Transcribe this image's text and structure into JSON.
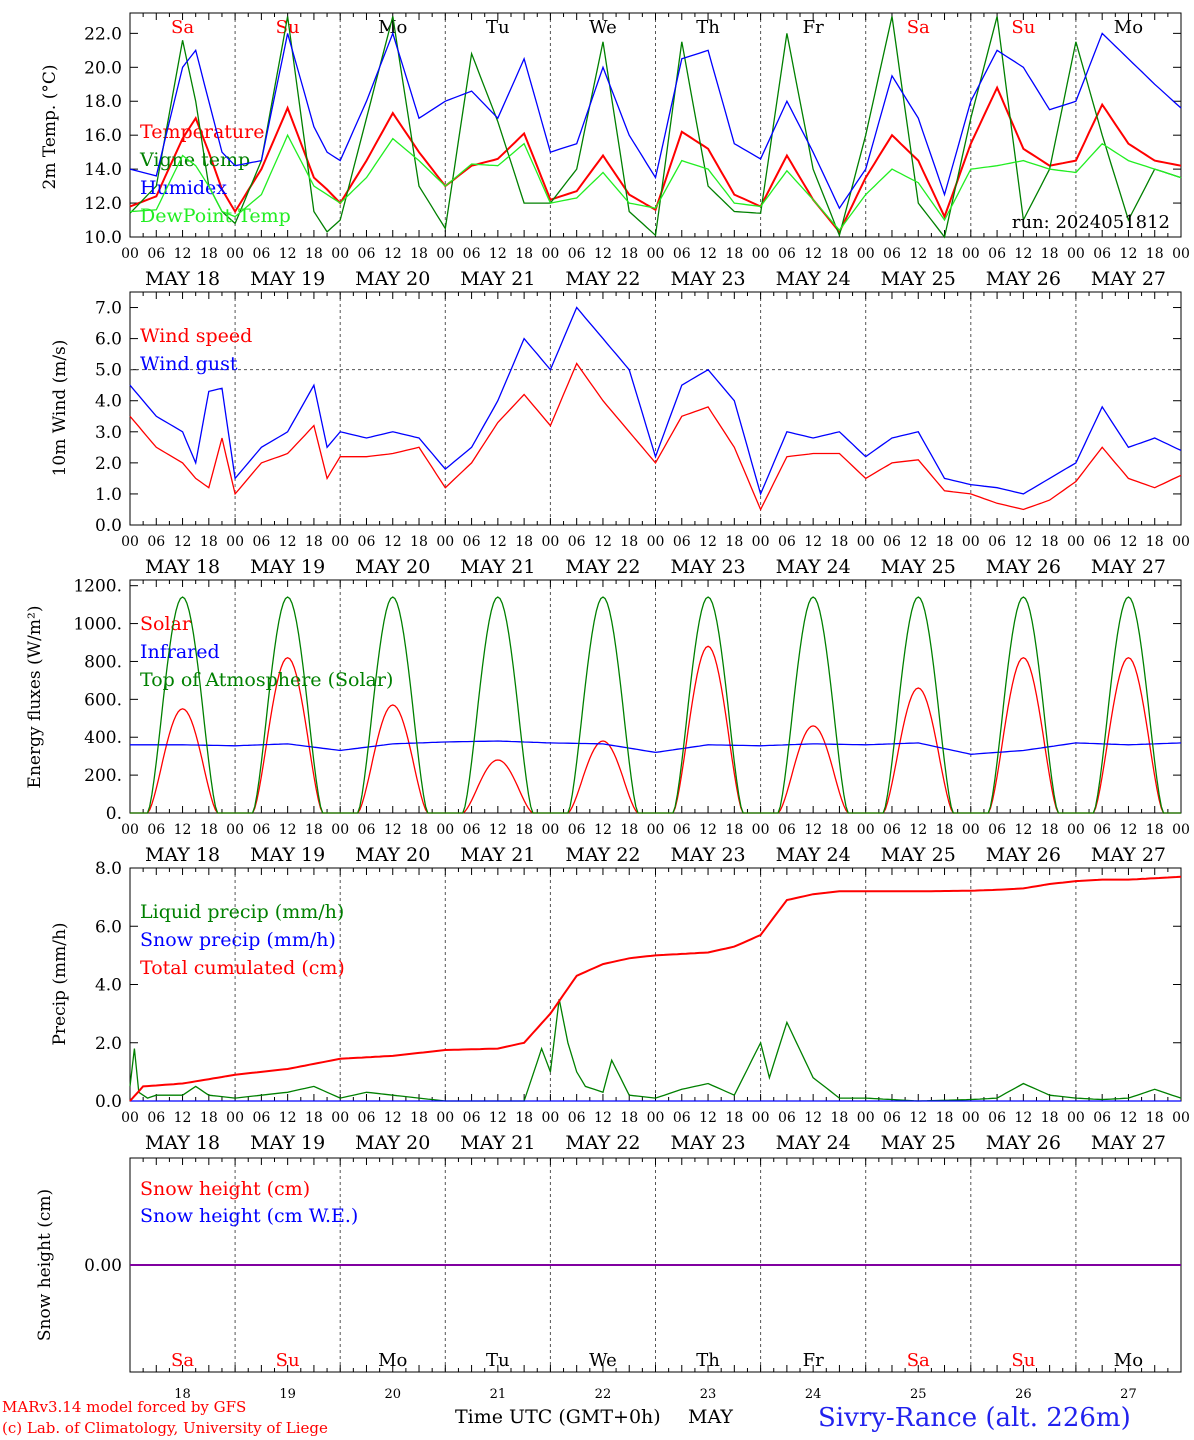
{
  "run_label": "run: 2024051812",
  "footer": {
    "model_line1": "MARv3.14 model forced by GFS",
    "model_line2": "(c) Lab. of Climatology, University of Liege",
    "time_label": "Time UTC (GMT+0h)",
    "month_label": "MAY",
    "station_label": "Sivry-Rance (alt. 226m)"
  },
  "days": [
    {
      "abbr": "Sa",
      "date": "MAY 18",
      "num": "18",
      "weekend": true
    },
    {
      "abbr": "Su",
      "date": "MAY 19",
      "num": "19",
      "weekend": true
    },
    {
      "abbr": "Mo",
      "date": "MAY 20",
      "num": "20",
      "weekend": false
    },
    {
      "abbr": "Tu",
      "date": "MAY 21",
      "num": "21",
      "weekend": false
    },
    {
      "abbr": "We",
      "date": "MAY 22",
      "num": "22",
      "weekend": false
    },
    {
      "abbr": "Th",
      "date": "MAY 23",
      "num": "23",
      "weekend": false
    },
    {
      "abbr": "Fr",
      "date": "MAY 24",
      "num": "24",
      "weekend": false
    },
    {
      "abbr": "Sa",
      "date": "MAY 25",
      "num": "25",
      "weekend": true
    },
    {
      "abbr": "Su",
      "date": "MAY 26",
      "num": "26",
      "weekend": true
    },
    {
      "abbr": "Mo",
      "date": "MAY 27",
      "num": "27",
      "weekend": false
    }
  ],
  "hour_ticks": [
    "00",
    "06",
    "12",
    "18"
  ],
  "hour_end_tick": "00",
  "colors": {
    "red": "#ff0000",
    "blue": "#0000ff",
    "green": "#008000",
    "lightgreen": "#22ee22",
    "purple": "#8000a0",
    "grey": "#555555"
  },
  "chart_data": [
    {
      "id": "temperature",
      "type": "line",
      "ylabel": "2m Temp. (°C)",
      "ylim": [
        10,
        23.2
      ],
      "yticks": [
        "10.0",
        "12.0",
        "14.0",
        "16.0",
        "18.0",
        "20.0",
        "22.0"
      ],
      "x_unit": "hours since MAY 18 00 UTC",
      "series": [
        {
          "name": "Temperature",
          "color": "red",
          "x": [
            0,
            6,
            12,
            15,
            18,
            21,
            24,
            30,
            36,
            42,
            45,
            48,
            54,
            60,
            66,
            72,
            78,
            84,
            90,
            96,
            102,
            108,
            114,
            120,
            126,
            132,
            138,
            144,
            150,
            156,
            162,
            168,
            174,
            180,
            186,
            192,
            198,
            204,
            210,
            216,
            222,
            228,
            234,
            240
          ],
          "values": [
            11.8,
            12.4,
            15.8,
            17,
            15,
            12.8,
            11.5,
            14,
            17.6,
            13.5,
            12.8,
            12,
            14.5,
            17.3,
            15,
            13,
            14.2,
            14.6,
            16.1,
            12.2,
            12.7,
            14.8,
            12.5,
            11.6,
            16.2,
            15.2,
            12.5,
            11.8,
            14.8,
            12.2,
            10.3,
            13.5,
            16,
            14.5,
            11.2,
            15.5,
            18.8,
            15.2,
            14.2,
            14.5,
            17.8,
            15.5,
            14.5,
            14.2
          ]
        },
        {
          "name": "Vigne temp",
          "color": "green",
          "x": [
            0,
            6,
            12,
            15,
            18,
            21,
            24,
            30,
            36,
            42,
            45,
            48,
            54,
            60,
            66,
            72,
            78,
            84,
            90,
            96,
            102,
            108,
            114,
            120,
            126,
            132,
            138,
            144,
            150,
            156,
            162,
            168,
            174,
            180,
            186,
            192,
            198,
            204,
            210,
            216,
            222,
            228,
            234,
            240
          ],
          "values": [
            11.4,
            13,
            21.6,
            18,
            13,
            11.5,
            10.8,
            14.5,
            23,
            11.5,
            10.3,
            11,
            17,
            23,
            13,
            10.5,
            20.8,
            16.8,
            12,
            12,
            14,
            21.5,
            11.5,
            10.1,
            21.5,
            13,
            11.5,
            11.4,
            22,
            14,
            10.1,
            16,
            23,
            12,
            10,
            17,
            23,
            11,
            14,
            21.5,
            16,
            11,
            14,
            13.5
          ]
        },
        {
          "name": "Humidex",
          "color": "blue",
          "x": [
            0,
            6,
            12,
            15,
            18,
            21,
            24,
            30,
            36,
            42,
            45,
            48,
            54,
            60,
            66,
            72,
            78,
            84,
            90,
            96,
            102,
            108,
            114,
            120,
            126,
            132,
            138,
            144,
            150,
            156,
            162,
            168,
            174,
            180,
            186,
            192,
            198,
            204,
            210,
            216,
            222,
            228,
            234,
            240
          ],
          "values": [
            14,
            13.6,
            20,
            21,
            18,
            15,
            14.2,
            14.5,
            22,
            16.5,
            15,
            14.5,
            18,
            22,
            17,
            18,
            18.6,
            17,
            20.5,
            15,
            15.5,
            20,
            16,
            13.5,
            20.5,
            21,
            15.5,
            14.6,
            18,
            15,
            11.7,
            14,
            19.5,
            17,
            12.5,
            18,
            21,
            20,
            17.5,
            18,
            22,
            20.5,
            19,
            17.6
          ]
        },
        {
          "name": "DewPoint Temp",
          "color": "lightgreen",
          "x": [
            0,
            6,
            12,
            15,
            18,
            21,
            24,
            30,
            36,
            42,
            45,
            48,
            54,
            60,
            66,
            72,
            78,
            84,
            90,
            96,
            102,
            108,
            114,
            120,
            126,
            132,
            138,
            144,
            150,
            156,
            162,
            168,
            174,
            180,
            186,
            192,
            198,
            204,
            210,
            216,
            222,
            228,
            234,
            240
          ],
          "values": [
            11.5,
            11.6,
            14.8,
            14.2,
            13,
            11.5,
            11.2,
            12.5,
            16,
            13,
            12.5,
            12,
            13.5,
            15.8,
            14.5,
            13,
            14.3,
            14.2,
            15.5,
            12,
            12.3,
            13.8,
            12,
            11.7,
            14.5,
            14,
            12,
            11.8,
            13.9,
            12.2,
            10.4,
            12.5,
            14,
            13.2,
            11,
            14,
            14.2,
            14.5,
            14,
            13.8,
            15.5,
            14.5,
            14,
            13.5
          ]
        }
      ]
    },
    {
      "id": "wind",
      "type": "line",
      "ylabel": "10m Wind (m/s)",
      "ylim": [
        0,
        7.5
      ],
      "yticks": [
        "0.0",
        "1.0",
        "2.0",
        "3.0",
        "4.0",
        "5.0",
        "6.0",
        "7.0"
      ],
      "reference_line": 5,
      "series": [
        {
          "name": "Wind speed",
          "color": "red",
          "x": [
            0,
            6,
            12,
            15,
            18,
            21,
            24,
            30,
            36,
            42,
            45,
            48,
            54,
            60,
            66,
            72,
            78,
            84,
            90,
            96,
            102,
            108,
            114,
            120,
            126,
            132,
            138,
            144,
            150,
            156,
            162,
            168,
            174,
            180,
            186,
            192,
            198,
            204,
            210,
            216,
            222,
            228,
            234,
            240
          ],
          "values": [
            3.5,
            2.5,
            2.0,
            1.5,
            1.2,
            2.8,
            1.0,
            2.0,
            2.3,
            3.2,
            1.5,
            2.2,
            2.2,
            2.3,
            2.5,
            1.2,
            2.0,
            3.3,
            4.2,
            3.2,
            5.2,
            4.0,
            3.0,
            2.0,
            3.5,
            3.8,
            2.5,
            0.5,
            2.2,
            2.3,
            2.3,
            1.5,
            2.0,
            2.1,
            1.1,
            1.0,
            0.7,
            0.5,
            0.8,
            1.4,
            2.5,
            1.5,
            1.2,
            1.6
          ]
        },
        {
          "name": "Wind gust",
          "color": "blue",
          "x": [
            0,
            6,
            12,
            15,
            18,
            21,
            24,
            30,
            36,
            42,
            45,
            48,
            54,
            60,
            66,
            72,
            78,
            84,
            90,
            96,
            102,
            108,
            114,
            120,
            126,
            132,
            138,
            144,
            150,
            156,
            162,
            168,
            174,
            180,
            186,
            192,
            198,
            204,
            210,
            216,
            222,
            228,
            234,
            240
          ],
          "values": [
            4.5,
            3.5,
            3.0,
            2.0,
            4.3,
            4.4,
            1.5,
            2.5,
            3.0,
            4.5,
            2.5,
            3.0,
            2.8,
            3.0,
            2.8,
            1.8,
            2.5,
            4.0,
            6.0,
            5.0,
            7.0,
            6.0,
            5.0,
            2.2,
            4.5,
            5.0,
            4.0,
            1.0,
            3.0,
            2.8,
            3.0,
            2.2,
            2.8,
            3.0,
            1.5,
            1.3,
            1.2,
            1.0,
            1.5,
            2.0,
            3.8,
            2.5,
            2.8,
            2.4
          ]
        }
      ]
    },
    {
      "id": "energy",
      "type": "line",
      "ylabel": "Energy fluxes (W/m²)",
      "ylim": [
        0,
        1230
      ],
      "yticks": [
        "0.",
        "200.",
        "400.",
        "600.",
        "800.",
        "1000.",
        "1200."
      ],
      "series": [
        {
          "name": "Solar",
          "color": "red",
          "day_peaks": [
            550,
            820,
            570,
            280,
            380,
            880,
            460,
            660,
            820,
            820
          ]
        },
        {
          "name": "Infrared",
          "color": "blue",
          "x": [
            0,
            12,
            24,
            36,
            48,
            60,
            72,
            84,
            96,
            108,
            120,
            132,
            144,
            156,
            168,
            180,
            192,
            204,
            216,
            228,
            240
          ],
          "values": [
            360,
            360,
            355,
            365,
            330,
            365,
            375,
            380,
            370,
            365,
            320,
            360,
            355,
            365,
            360,
            370,
            310,
            330,
            370,
            360,
            370
          ]
        },
        {
          "name": "Top of Atmosphere (Solar)",
          "color": "green",
          "day_peak": 1140
        }
      ]
    },
    {
      "id": "precip",
      "type": "line",
      "ylabel": "Precip (mm/h)",
      "ylim": [
        0,
        8.0
      ],
      "yticks": [
        "0.0",
        "2.0",
        "4.0",
        "6.0",
        "8.0"
      ],
      "series": [
        {
          "name": "Liquid precip (mm/h)",
          "color": "green",
          "x": [
            0,
            1,
            2,
            4,
            6,
            12,
            15,
            18,
            24,
            30,
            36,
            42,
            48,
            54,
            60,
            66,
            72,
            84,
            90,
            94,
            96,
            98,
            100,
            102,
            104,
            108,
            110,
            114,
            120,
            126,
            132,
            138,
            144,
            146,
            150,
            156,
            162,
            168,
            180,
            192,
            198,
            204,
            210,
            216,
            222,
            228,
            234,
            240
          ],
          "values": [
            0.5,
            1.8,
            0.3,
            0.1,
            0.2,
            0.2,
            0.5,
            0.2,
            0.1,
            0.2,
            0.3,
            0.5,
            0.1,
            0.3,
            0.2,
            0.1,
            0,
            0,
            0,
            1.8,
            1.0,
            3.5,
            2.0,
            1.0,
            0.5,
            0.3,
            1.4,
            0.2,
            0.1,
            0.4,
            0.6,
            0.2,
            2.0,
            0.8,
            2.7,
            0.8,
            0.1,
            0.1,
            0,
            0.05,
            0.1,
            0.6,
            0.2,
            0.1,
            0.05,
            0.1,
            0.4,
            0.1
          ]
        },
        {
          "name": "Snow precip (mm/h)",
          "color": "blue",
          "x": [
            0,
            240
          ],
          "values": [
            0,
            0
          ]
        },
        {
          "name": "Total cumulated (cm)",
          "color": "red",
          "x": [
            0,
            3,
            12,
            24,
            36,
            48,
            60,
            72,
            84,
            90,
            96,
            102,
            108,
            114,
            120,
            126,
            132,
            138,
            144,
            150,
            156,
            162,
            168,
            180,
            192,
            198,
            204,
            210,
            216,
            222,
            228,
            234,
            240
          ],
          "values": [
            0,
            0.5,
            0.6,
            0.9,
            1.1,
            1.45,
            1.55,
            1.75,
            1.8,
            2.0,
            3.0,
            4.3,
            4.7,
            4.9,
            5.0,
            5.05,
            5.1,
            5.3,
            5.7,
            6.9,
            7.1,
            7.2,
            7.2,
            7.2,
            7.22,
            7.25,
            7.3,
            7.45,
            7.55,
            7.6,
            7.6,
            7.65,
            7.7
          ]
        }
      ]
    },
    {
      "id": "snow",
      "type": "line",
      "ylabel": "Snow height (cm)",
      "yticks": [
        "0.00"
      ],
      "series": [
        {
          "name": "Snow height (cm)",
          "color": "red",
          "x": [
            0,
            240
          ],
          "values": [
            0,
            0
          ]
        },
        {
          "name": "Snow height (cm W.E.)",
          "color": "blue",
          "x": [
            0,
            240
          ],
          "values": [
            0,
            0
          ]
        }
      ]
    }
  ]
}
